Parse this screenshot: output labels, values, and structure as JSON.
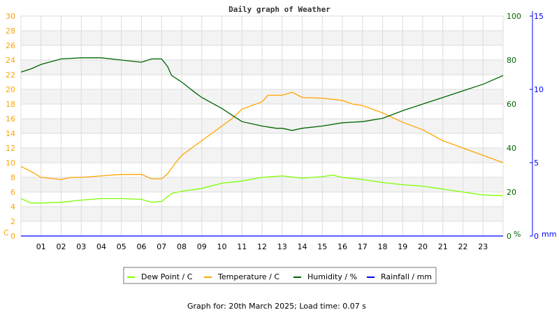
{
  "chart_data": {
    "type": "line",
    "title": "Daily graph of Weather",
    "footer": "Graph for: 20th March 2025; Load time: 0.07 s",
    "x_ticks": [
      "01",
      "02",
      "03",
      "04",
      "05",
      "06",
      "07",
      "08",
      "09",
      "10",
      "11",
      "12",
      "13",
      "14",
      "15",
      "16",
      "17",
      "18",
      "19",
      "20",
      "21",
      "22",
      "23"
    ],
    "xlim": [
      0,
      24
    ],
    "grid": true,
    "legend_position": "bottom",
    "axes": {
      "left": {
        "label": "C",
        "ylim": [
          0,
          30
        ],
        "ticks": [
          "0",
          "2",
          "4",
          "6",
          "8",
          "10",
          "12",
          "14",
          "16",
          "18",
          "20",
          "22",
          "24",
          "26",
          "28",
          "30"
        ],
        "color": "#ffa500"
      },
      "right_humidity": {
        "label": "%",
        "ylim": [
          0,
          100
        ],
        "ticks": [
          "0",
          "20",
          "40",
          "60",
          "80",
          "100"
        ],
        "color": "#006400"
      },
      "right_rain": {
        "label": "mm",
        "ylim": [
          0,
          15
        ],
        "ticks": [
          "0",
          "5",
          "10",
          "15"
        ],
        "color": "#0000ff"
      }
    },
    "series": [
      {
        "name": "Dew Point / C",
        "color": "#7fff00",
        "axis": "left",
        "x": [
          0,
          0.5,
          1,
          2,
          3,
          4,
          5,
          6,
          6.5,
          7,
          7.5,
          8,
          9,
          10,
          11,
          12,
          13,
          14,
          15,
          15.5,
          16,
          17,
          18,
          19,
          20,
          21,
          22,
          23,
          24
        ],
        "y": [
          5.1,
          4.5,
          4.5,
          4.6,
          4.9,
          5.1,
          5.1,
          5.0,
          4.6,
          4.7,
          5.8,
          6.1,
          6.5,
          7.2,
          7.5,
          8.0,
          8.2,
          7.9,
          8.1,
          8.3,
          8.0,
          7.7,
          7.3,
          7.0,
          6.8,
          6.4,
          6.0,
          5.6,
          5.5
        ]
      },
      {
        "name": "Temperature / C",
        "color": "#ffa500",
        "axis": "left",
        "x": [
          0,
          0.5,
          1,
          2,
          2.5,
          3,
          4,
          5,
          6,
          6.5,
          7,
          7.3,
          7.7,
          8,
          9,
          10,
          10.5,
          11,
          12,
          12.3,
          13,
          13.5,
          14,
          15,
          16,
          16.5,
          17,
          18,
          19,
          20,
          21,
          22,
          23,
          24
        ],
        "y": [
          9.5,
          8.8,
          8.0,
          7.7,
          8.0,
          8.0,
          8.2,
          8.4,
          8.4,
          7.8,
          7.8,
          8.5,
          10,
          11,
          13,
          15,
          16,
          17.3,
          18.3,
          19.2,
          19.2,
          19.6,
          18.9,
          18.8,
          18.5,
          18.0,
          17.8,
          16.8,
          15.5,
          14.5,
          13,
          12,
          11,
          10
        ]
      },
      {
        "name": "Humidity / %",
        "color": "#006400",
        "axis": "right_humidity",
        "x": [
          0,
          0.5,
          1,
          2,
          3,
          4,
          5,
          6,
          6.5,
          7,
          7.3,
          7.5,
          8,
          8.7,
          9,
          10,
          10.5,
          11,
          12,
          12.7,
          13,
          13.5,
          14,
          15,
          16,
          17,
          18,
          19,
          20,
          21,
          22,
          23,
          24
        ],
        "y": [
          74.5,
          76,
          78,
          80.5,
          81,
          81,
          80,
          79,
          80.5,
          80.5,
          77,
          73,
          70,
          65,
          63,
          58,
          55,
          52,
          50,
          49,
          49,
          48,
          49,
          50,
          51.5,
          52,
          53.5,
          57,
          60,
          63,
          66,
          69,
          73
        ]
      },
      {
        "name": "Rainfall / mm",
        "color": "#0000ff",
        "axis": "right_rain",
        "x": [
          0,
          24
        ],
        "y": [
          0,
          0
        ]
      }
    ]
  }
}
